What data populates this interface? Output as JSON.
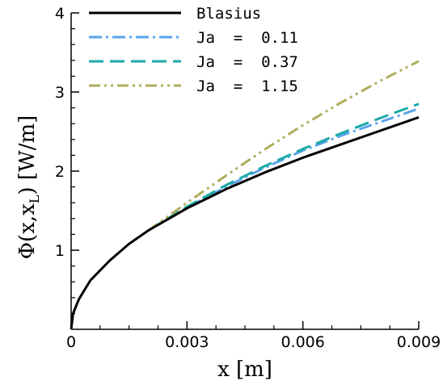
{
  "chart_data": {
    "type": "line",
    "xlabel": "x  [m]",
    "ylabel": {
      "prefix": "Φ(x,x",
      "subscript": "L",
      "suffix": ")  [W/m]"
    },
    "xlim": [
      0,
      0.009
    ],
    "ylim": [
      0,
      4
    ],
    "xticks": [
      0,
      0.003,
      0.006,
      0.009
    ],
    "xtick_labels": [
      "0",
      "0.003",
      "0.006",
      "0.009"
    ],
    "yticks": [
      1,
      2,
      3,
      4
    ],
    "ytick_labels": [
      "1",
      "2",
      "3",
      "4"
    ],
    "legend_position": "top-left",
    "series": [
      {
        "name": "Blasius",
        "color": "#000000",
        "style": "solid",
        "x": [
          0,
          5e-05,
          0.0002,
          0.0005,
          0.001,
          0.0015,
          0.002,
          0.003,
          0.004,
          0.005,
          0.006,
          0.007,
          0.008,
          0.009
        ],
        "y": [
          0,
          0.2,
          0.38,
          0.62,
          0.87,
          1.08,
          1.25,
          1.53,
          1.77,
          1.98,
          2.17,
          2.34,
          2.51,
          2.68
        ]
      },
      {
        "name": "Ja  =  0.11",
        "color": "#5aa4ea",
        "style": "dashdot",
        "x": [
          0.002,
          0.003,
          0.004,
          0.005,
          0.006,
          0.007,
          0.008,
          0.009
        ],
        "y": [
          1.25,
          1.54,
          1.8,
          2.04,
          2.26,
          2.45,
          2.62,
          2.79
        ]
      },
      {
        "name": "Ja  =  0.37",
        "color": "#1aaaa8",
        "style": "dash",
        "x": [
          0.002,
          0.003,
          0.004,
          0.005,
          0.006,
          0.007,
          0.008,
          0.009
        ],
        "y": [
          1.25,
          1.55,
          1.82,
          2.06,
          2.28,
          2.48,
          2.67,
          2.85
        ]
      },
      {
        "name": "Ja  =  1.15",
        "color": "#b0ad5c",
        "style": "dashdotdot",
        "x": [
          0.002,
          0.003,
          0.004,
          0.005,
          0.006,
          0.007,
          0.008,
          0.009
        ],
        "y": [
          1.25,
          1.6,
          1.94,
          2.27,
          2.58,
          2.87,
          3.14,
          3.39
        ]
      }
    ]
  }
}
